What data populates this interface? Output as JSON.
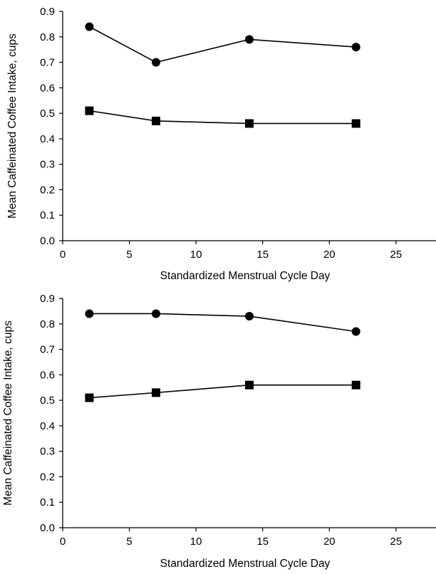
{
  "chart_data": [
    {
      "type": "line",
      "xlabel": "Standardized Menstrual Cycle Day",
      "ylabel": "Mean Caffeinated Coffee Intake, cups",
      "xlim": [
        0,
        28
      ],
      "ylim": [
        0.0,
        0.9
      ],
      "xticks": [
        "0",
        "5",
        "10",
        "15",
        "20",
        "25"
      ],
      "yticks": [
        "0.0",
        "0.1",
        "0.2",
        "0.3",
        "0.4",
        "0.5",
        "0.6",
        "0.7",
        "0.8",
        "0.9"
      ],
      "grid": false,
      "legend": "none",
      "x": [
        2,
        7,
        14,
        22
      ],
      "series": [
        {
          "marker": "circle",
          "color": "#000000",
          "values": [
            0.84,
            0.7,
            0.79,
            0.76
          ]
        },
        {
          "marker": "square",
          "color": "#000000",
          "values": [
            0.51,
            0.47,
            0.46,
            0.46
          ]
        }
      ]
    },
    {
      "type": "line",
      "xlabel": "Standardized Menstrual Cycle Day",
      "ylabel": "Mean Caffeinated Coffee Intake, cups",
      "xlim": [
        0,
        28
      ],
      "ylim": [
        0.0,
        0.9
      ],
      "xticks": [
        "0",
        "5",
        "10",
        "15",
        "20",
        "25"
      ],
      "yticks": [
        "0.0",
        "0.1",
        "0.2",
        "0.3",
        "0.4",
        "0.5",
        "0.6",
        "0.7",
        "0.8",
        "0.9"
      ],
      "grid": false,
      "legend": "none",
      "x": [
        2,
        7,
        14,
        22
      ],
      "series": [
        {
          "marker": "circle",
          "color": "#000000",
          "values": [
            0.84,
            0.84,
            0.83,
            0.77
          ]
        },
        {
          "marker": "square",
          "color": "#000000",
          "values": [
            0.51,
            0.53,
            0.56,
            0.56
          ]
        }
      ]
    }
  ]
}
